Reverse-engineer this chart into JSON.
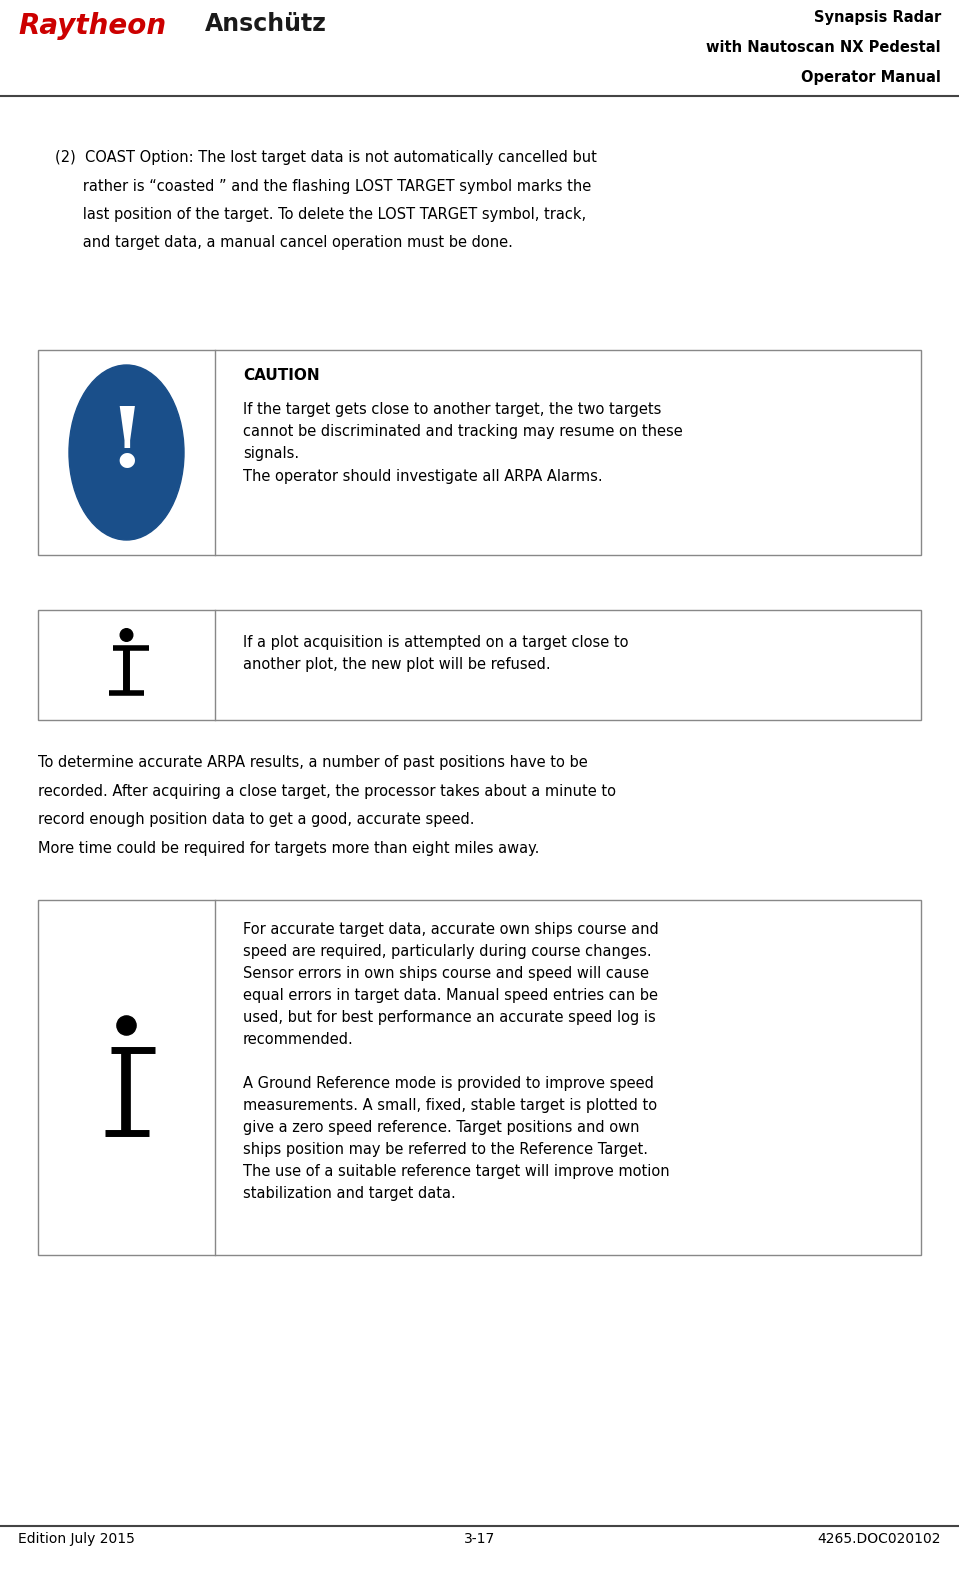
{
  "page_width": 9.59,
  "page_height": 15.91,
  "bg_color": "#ffffff",
  "logo_raytheon_text": "Raytheon",
  "logo_anschutz_text": "Anschütz",
  "header_title_lines": [
    "Synapsis Radar",
    "with Nautoscan NX Pedestal",
    "Operator Manual"
  ],
  "footer_left": "Edition July 2015",
  "footer_center": "3-17",
  "footer_right": "4265.DOC020102",
  "main_text_1_line1": "(2)  COAST Option: The lost target data is not automatically cancelled but",
  "main_text_1_line2": "      rather is “coasted ” and the flashing LOST TARGET symbol marks the",
  "main_text_1_line3": "      last position of the target. To delete the LOST TARGET symbol, track,",
  "main_text_1_line4": "      and target data, a manual cancel operation must be done.",
  "caution_box_label": "CAUTION",
  "caution_text": "If the target gets close to another target, the two targets\ncannot be discriminated and tracking may resume on these\nsignals.\nThe operator should investigate all ARPA Alarms.",
  "info_box1_text": "If a plot acquisition is attempted on a target close to\nanother plot, the new plot will be refused.",
  "main_text_2": "To determine accurate ARPA results, a number of past positions have to be\nrecorded. After acquiring a close target, the processor takes about a minute to\nrecord enough position data to get a good, accurate speed.\nMore time could be required for targets more than eight miles away.",
  "info_box2_text": "For accurate target data, accurate own ships course and\nspeed are required, particularly during course changes.\nSensor errors in own ships course and speed will cause\nequal errors in target data. Manual speed entries can be\nused, but for best performance an accurate speed log is\nrecommended.\n\nA Ground Reference mode is provided to improve speed\nmeasurements. A small, fixed, stable target is plotted to\ngive a zero speed reference. Target positions and own\nships position may be referred to the Reference Target.\nThe use of a suitable reference target will improve motion\nstabilization and target data.",
  "caution_icon_color": "#1a4f8a",
  "border_color": "#888888",
  "text_color": "#000000",
  "raytheon_red": "#cc0000"
}
